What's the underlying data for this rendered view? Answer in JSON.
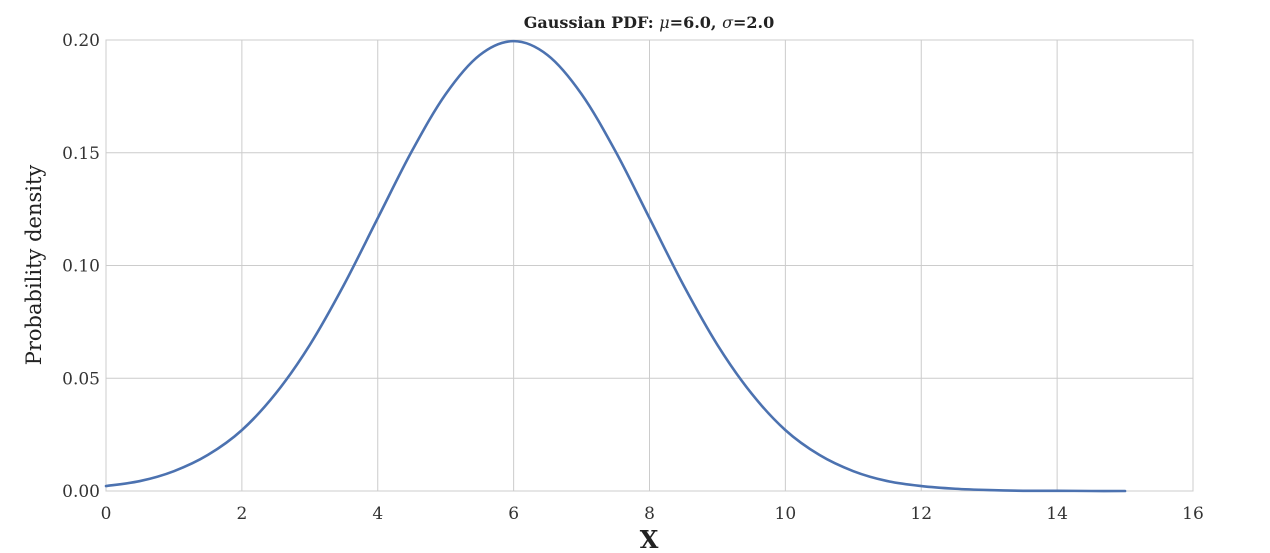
{
  "chart_data": {
    "type": "line",
    "title_parts": [
      "Gaussian PDF: ",
      "μ",
      "=6.0, ",
      "σ",
      "=2.0"
    ],
    "xlabel": "X",
    "ylabel": "Probability density",
    "xlim": [
      0,
      16
    ],
    "ylim": [
      0,
      0.2
    ],
    "xticks": [
      "0",
      "2",
      "4",
      "6",
      "8",
      "10",
      "12",
      "14",
      "16"
    ],
    "yticks": [
      "0.00",
      "0.05",
      "0.10",
      "0.15",
      "0.20"
    ],
    "grid": true,
    "series": [
      {
        "color": "#4c72b0",
        "x": [
          0,
          0.5,
          1,
          1.5,
          2,
          2.5,
          3,
          3.5,
          4,
          4.5,
          5,
          5.5,
          6,
          6.5,
          7,
          7.5,
          8,
          8.5,
          9,
          9.5,
          10,
          10.5,
          11,
          11.5,
          12,
          12.5,
          13,
          13.5,
          14,
          14.5,
          15
        ],
        "y": [
          0.0022,
          0.0044,
          0.0088,
          0.016,
          0.027,
          0.0433,
          0.0648,
          0.0913,
          0.121,
          0.1506,
          0.176,
          0.1933,
          0.1995,
          0.1933,
          0.176,
          0.1506,
          0.121,
          0.0913,
          0.0648,
          0.0433,
          0.027,
          0.016,
          0.0088,
          0.0044,
          0.0022,
          0.001,
          0.0004,
          0.0001,
          0.0001,
          0.0,
          0.0
        ]
      }
    ]
  }
}
